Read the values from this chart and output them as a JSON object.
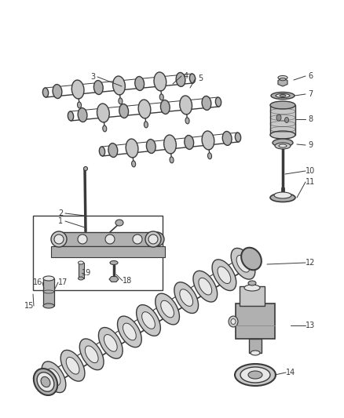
{
  "bg_color": "#ffffff",
  "line_color": "#3a3a3a",
  "figsize": [
    4.38,
    5.33
  ],
  "dpi": 100,
  "gray1": "#c8c8c8",
  "gray2": "#b0b0b0",
  "gray3": "#e8e8e8",
  "gray4": "#909090",
  "label_fs": 7,
  "lw_main": 1.0,
  "lw_label": 0.7
}
